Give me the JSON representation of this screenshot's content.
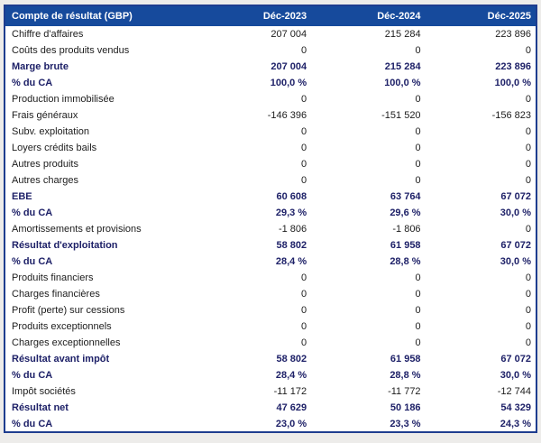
{
  "page": {
    "background": "#edecea"
  },
  "table": {
    "title": "Compte de résultat (GBP)",
    "columns": [
      "Déc-2023",
      "Déc-2024",
      "Déc-2025"
    ],
    "colors": {
      "header_bg": "#164a9c",
      "header_text": "#ffffff",
      "border": "#1e3d8f",
      "bold_text": "#1e2168",
      "normal_text": "#1c1c1c",
      "row_bg": "#ffffff"
    },
    "rows": [
      {
        "label": "Chiffre d'affaires",
        "values": [
          "207 004",
          "215 284",
          "223 896"
        ],
        "bold": false
      },
      {
        "label": "Coûts des produits vendus",
        "values": [
          "0",
          "0",
          "0"
        ],
        "bold": false
      },
      {
        "label": "Marge brute",
        "values": [
          "207 004",
          "215 284",
          "223 896"
        ],
        "bold": true
      },
      {
        "label": "% du CA",
        "values": [
          "100,0 %",
          "100,0 %",
          "100,0 %"
        ],
        "bold": true
      },
      {
        "label": "Production immobilisée",
        "values": [
          "0",
          "0",
          "0"
        ],
        "bold": false
      },
      {
        "label": "Frais généraux",
        "values": [
          "-146 396",
          "-151 520",
          "-156 823"
        ],
        "bold": false
      },
      {
        "label": "Subv. exploitation",
        "values": [
          "0",
          "0",
          "0"
        ],
        "bold": false
      },
      {
        "label": "Loyers crédits bails",
        "values": [
          "0",
          "0",
          "0"
        ],
        "bold": false
      },
      {
        "label": "Autres produits",
        "values": [
          "0",
          "0",
          "0"
        ],
        "bold": false
      },
      {
        "label": "Autres charges",
        "values": [
          "0",
          "0",
          "0"
        ],
        "bold": false
      },
      {
        "label": "EBE",
        "values": [
          "60 608",
          "63 764",
          "67 072"
        ],
        "bold": true
      },
      {
        "label": "% du CA",
        "values": [
          "29,3 %",
          "29,6 %",
          "30,0 %"
        ],
        "bold": true
      },
      {
        "label": "Amortissements et provisions",
        "values": [
          "-1 806",
          "-1 806",
          "0"
        ],
        "bold": false
      },
      {
        "label": "Résultat d'exploitation",
        "values": [
          "58 802",
          "61 958",
          "67 072"
        ],
        "bold": true
      },
      {
        "label": "% du CA",
        "values": [
          "28,4 %",
          "28,8 %",
          "30,0 %"
        ],
        "bold": true
      },
      {
        "label": "Produits financiers",
        "values": [
          "0",
          "0",
          "0"
        ],
        "bold": false
      },
      {
        "label": "Charges financières",
        "values": [
          "0",
          "0",
          "0"
        ],
        "bold": false
      },
      {
        "label": "Profit (perte) sur cessions",
        "values": [
          "0",
          "0",
          "0"
        ],
        "bold": false
      },
      {
        "label": "Produits exceptionnels",
        "values": [
          "0",
          "0",
          "0"
        ],
        "bold": false
      },
      {
        "label": "Charges exceptionnelles",
        "values": [
          "0",
          "0",
          "0"
        ],
        "bold": false
      },
      {
        "label": "Résultat avant impôt",
        "values": [
          "58 802",
          "61 958",
          "67 072"
        ],
        "bold": true
      },
      {
        "label": "% du CA",
        "values": [
          "28,4 %",
          "28,8 %",
          "30,0 %"
        ],
        "bold": true
      },
      {
        "label": "Impôt sociétés",
        "values": [
          "-11 172",
          "-11 772",
          "-12 744"
        ],
        "bold": false
      },
      {
        "label": "Résultat net",
        "values": [
          "47 629",
          "50 186",
          "54 329"
        ],
        "bold": true
      },
      {
        "label": "% du CA",
        "values": [
          "23,0 %",
          "23,3 %",
          "24,3 %"
        ],
        "bold": true
      }
    ]
  }
}
